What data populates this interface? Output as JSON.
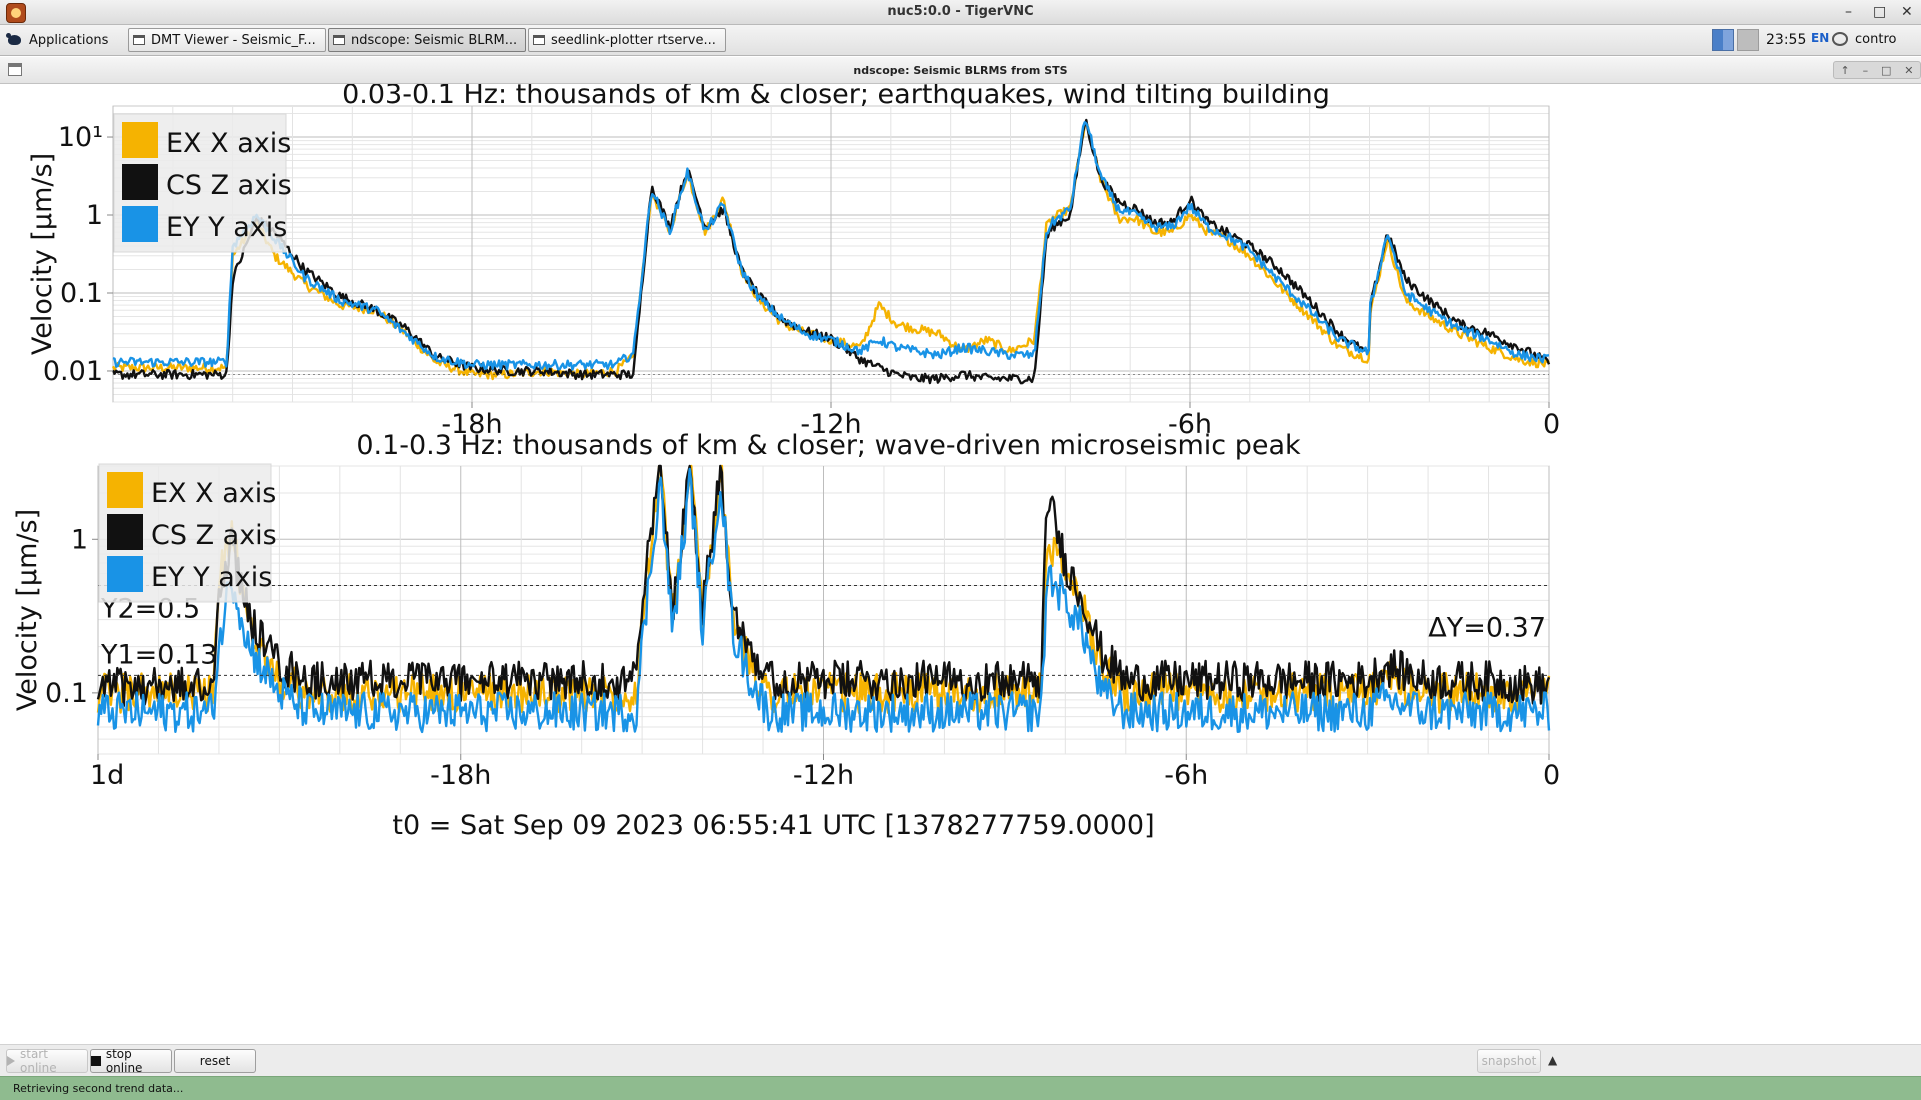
{
  "vnc": {
    "title": "nuc5:0.0 - TigerVNC"
  },
  "taskbar": {
    "applications_label": "Applications",
    "tasks": [
      {
        "label": "DMT Viewer - Seismic_F..."
      },
      {
        "label": "ndscope: Seismic BLRM..."
      },
      {
        "label": "seedlink-plotter rtserve..."
      }
    ],
    "clock": "23:55",
    "lang": "EN",
    "user": "contro"
  },
  "window": {
    "title": "ndscope: Seismic BLRMS from STS"
  },
  "chart_data": [
    {
      "type": "line",
      "title": "0.03-0.1 Hz: thousands of km & closer; earthquakes, wind tilting building",
      "ylabel": "Velocity [μm/s]",
      "y_scale": "log",
      "ylim": [
        0.004,
        25
      ],
      "ytick_labels": [
        "0.01",
        "0.1",
        "1",
        "10¹"
      ],
      "ytick_values": [
        0.01,
        0.1,
        1,
        10
      ],
      "xlim": [
        -24,
        0
      ],
      "xtick_labels": [
        "-18h",
        "-12h",
        "-6h",
        "0"
      ],
      "xtick_values": [
        -18,
        -12,
        -6,
        0
      ],
      "legend": "top-left",
      "colors": {
        "EX X axis": "#f5b301",
        "CS Z axis": "#111111",
        "EY Y axis": "#1993e6"
      },
      "series": [
        {
          "name": "EX X axis",
          "x": [
            -24,
            -22.1,
            -22.0,
            -21.6,
            -21.3,
            -20.8,
            -20.2,
            -19.6,
            -19.1,
            -18.6,
            -18,
            -17.4,
            -16.8,
            -16.2,
            -15.6,
            -15.3,
            -15.0,
            -14.7,
            -14.4,
            -14.1,
            -13.8,
            -13.5,
            -13.2,
            -12.8,
            -12.4,
            -12.0,
            -11.5,
            -11.2,
            -10.9,
            -10.6,
            -10.2,
            -9.8,
            -9.4,
            -9.0,
            -8.6,
            -8.4,
            -8.3,
            -8.0,
            -7.75,
            -7.5,
            -7.2,
            -6.9,
            -6.6,
            -6.3,
            -6.0,
            -5.7,
            -5.4,
            -5.0,
            -4.5,
            -4.0,
            -3.5,
            -3.0,
            -3.0,
            -2.7,
            -2.4,
            -2.0,
            -1.5,
            -1.0,
            -0.5,
            0
          ],
          "y": [
            0.011,
            0.011,
            0.3,
            0.8,
            0.3,
            0.13,
            0.07,
            0.06,
            0.03,
            0.013,
            0.009,
            0.009,
            0.01,
            0.009,
            0.01,
            0.015,
            2.0,
            0.6,
            3.5,
            0.6,
            1.6,
            0.2,
            0.08,
            0.04,
            0.03,
            0.025,
            0.02,
            0.07,
            0.04,
            0.035,
            0.03,
            0.018,
            0.025,
            0.018,
            0.025,
            0.7,
            0.9,
            1.2,
            16,
            3,
            0.9,
            0.9,
            0.6,
            0.6,
            1.0,
            0.6,
            0.5,
            0.3,
            0.12,
            0.05,
            0.02,
            0.014,
            0.05,
            0.5,
            0.08,
            0.05,
            0.03,
            0.02,
            0.014,
            0.012
          ]
        },
        {
          "name": "CS Z axis",
          "x": [
            -24,
            -22.1,
            -22.0,
            -21.6,
            -21.3,
            -20.8,
            -20.2,
            -19.6,
            -19.1,
            -18.6,
            -18,
            -17.4,
            -16.8,
            -16.2,
            -15.6,
            -15.3,
            -15.0,
            -14.7,
            -14.4,
            -14.1,
            -13.8,
            -13.5,
            -13.2,
            -12.8,
            -12.4,
            -12.0,
            -11.5,
            -11.2,
            -10.9,
            -10.6,
            -10.2,
            -9.8,
            -9.4,
            -9.0,
            -8.6,
            -8.4,
            -8.3,
            -8.0,
            -7.75,
            -7.5,
            -7.2,
            -6.9,
            -6.6,
            -6.3,
            -6.0,
            -5.7,
            -5.4,
            -5.0,
            -4.5,
            -4.0,
            -3.5,
            -3.0,
            -3.0,
            -2.7,
            -2.4,
            -2.0,
            -1.5,
            -1.0,
            -0.5,
            0
          ],
          "y": [
            0.009,
            0.009,
            0.15,
            0.9,
            0.6,
            0.2,
            0.09,
            0.06,
            0.035,
            0.015,
            0.011,
            0.01,
            0.01,
            0.009,
            0.009,
            0.009,
            2.4,
            0.7,
            3.8,
            0.7,
            1.2,
            0.2,
            0.09,
            0.045,
            0.032,
            0.026,
            0.014,
            0.011,
            0.009,
            0.008,
            0.008,
            0.009,
            0.008,
            0.008,
            0.008,
            0.5,
            0.7,
            1.0,
            17,
            3,
            1.5,
            1.2,
            0.8,
            0.8,
            1.6,
            0.8,
            0.6,
            0.4,
            0.2,
            0.08,
            0.03,
            0.016,
            0.06,
            0.6,
            0.15,
            0.08,
            0.04,
            0.03,
            0.02,
            0.013
          ]
        },
        {
          "name": "EY Y axis",
          "x": [
            -24,
            -22.1,
            -22.0,
            -21.6,
            -21.3,
            -20.8,
            -20.2,
            -19.6,
            -19.1,
            -18.6,
            -18,
            -17.4,
            -16.8,
            -16.2,
            -15.6,
            -15.3,
            -15.0,
            -14.7,
            -14.4,
            -14.1,
            -13.8,
            -13.5,
            -13.2,
            -12.8,
            -12.4,
            -12.0,
            -11.5,
            -11.2,
            -10.9,
            -10.6,
            -10.2,
            -9.8,
            -9.4,
            -9.0,
            -8.6,
            -8.4,
            -8.3,
            -8.0,
            -7.75,
            -7.5,
            -7.2,
            -6.9,
            -6.6,
            -6.3,
            -6.0,
            -5.7,
            -5.4,
            -5.0,
            -4.5,
            -4.0,
            -3.5,
            -3.0,
            -3.0,
            -2.7,
            -2.4,
            -2.0,
            -1.5,
            -1.0,
            -0.5,
            0
          ],
          "y": [
            0.013,
            0.013,
            0.4,
            1.0,
            0.5,
            0.16,
            0.08,
            0.06,
            0.03,
            0.015,
            0.012,
            0.012,
            0.012,
            0.012,
            0.012,
            0.017,
            2.2,
            0.6,
            3.6,
            0.6,
            1.4,
            0.2,
            0.085,
            0.045,
            0.03,
            0.025,
            0.018,
            0.025,
            0.02,
            0.018,
            0.016,
            0.02,
            0.018,
            0.016,
            0.016,
            0.6,
            0.8,
            1.2,
            18,
            3.2,
            1.2,
            1.0,
            0.7,
            0.7,
            1.3,
            0.7,
            0.55,
            0.35,
            0.14,
            0.06,
            0.025,
            0.017,
            0.06,
            0.6,
            0.1,
            0.06,
            0.035,
            0.025,
            0.016,
            0.014
          ]
        }
      ]
    },
    {
      "type": "line",
      "title": "0.1-0.3 Hz: thousands of km & closer; wave-driven microseismic peak",
      "ylabel": "Velocity [μm/s]",
      "y_scale": "log",
      "ylim": [
        0.04,
        3.0
      ],
      "ytick_labels": [
        "0.1",
        "1"
      ],
      "ytick_values": [
        0.1,
        1
      ],
      "xlim": [
        -24,
        0
      ],
      "xtick_labels": [
        "1d",
        "-18h",
        "-12h",
        "-6h",
        "0"
      ],
      "xtick_values": [
        -24,
        -18,
        -12,
        -6,
        0
      ],
      "x_axis_label": "t0 = Sat Sep 09 2023 06:55:41 UTC [1378277759.0000]",
      "legend": "top-left",
      "cursors": {
        "Y1": 0.13,
        "Y2": 0.5,
        "Y1_label": "Y1=0.13",
        "Y2_label": "Y2=0.5",
        "delta_label": "ΔY=0.37"
      },
      "series": [
        {
          "name": "EX X axis",
          "x": [
            -24,
            -22.1,
            -22.0,
            -21.8,
            -21.5,
            -21.0,
            -20.5,
            -20,
            -19,
            -18,
            -17,
            -16,
            -15.1,
            -15.0,
            -14.7,
            -14.5,
            -14.2,
            -14.0,
            -13.7,
            -13.5,
            -13.2,
            -12.9,
            -12.5,
            -12,
            -11,
            -10,
            -9,
            -8.4,
            -8.3,
            -8.0,
            -7.7,
            -7.4,
            -7.0,
            -6.5,
            -6,
            -5,
            -4,
            -3,
            -2.7,
            -2,
            -1,
            0
          ],
          "y": [
            0.1,
            0.1,
            0.5,
            1.2,
            0.25,
            0.12,
            0.1,
            0.1,
            0.1,
            0.1,
            0.1,
            0.1,
            0.1,
            0.3,
            3.0,
            0.3,
            3.0,
            0.3,
            3.0,
            0.3,
            0.15,
            0.1,
            0.1,
            0.1,
            0.1,
            0.1,
            0.1,
            0.1,
            1.0,
            0.6,
            0.35,
            0.15,
            0.1,
            0.1,
            0.1,
            0.1,
            0.1,
            0.1,
            0.12,
            0.1,
            0.1,
            0.1
          ]
        },
        {
          "name": "CS Z axis",
          "x": [
            -24,
            -22.1,
            -22.0,
            -21.8,
            -21.5,
            -21.0,
            -20.5,
            -20,
            -19,
            -18,
            -17,
            -16,
            -15.1,
            -15.0,
            -14.7,
            -14.5,
            -14.2,
            -14.0,
            -13.7,
            -13.5,
            -13.2,
            -12.9,
            -12.5,
            -12,
            -11,
            -10,
            -9,
            -8.4,
            -8.3,
            -8.0,
            -7.7,
            -7.4,
            -7.0,
            -6.5,
            -6,
            -5,
            -4,
            -3,
            -2.7,
            -2,
            -1,
            0
          ],
          "y": [
            0.11,
            0.11,
            0.4,
            1.0,
            0.3,
            0.15,
            0.12,
            0.12,
            0.12,
            0.12,
            0.12,
            0.12,
            0.12,
            0.4,
            3.0,
            0.35,
            3.0,
            0.35,
            3.0,
            0.35,
            0.2,
            0.12,
            0.12,
            0.12,
            0.12,
            0.12,
            0.12,
            0.12,
            2.0,
            0.7,
            0.4,
            0.18,
            0.12,
            0.12,
            0.12,
            0.12,
            0.12,
            0.12,
            0.15,
            0.12,
            0.12,
            0.11
          ]
        },
        {
          "name": "EY Y axis",
          "x": [
            -24,
            -22.1,
            -22.0,
            -21.8,
            -21.5,
            -21.0,
            -20.5,
            -20,
            -19,
            -18,
            -17,
            -16,
            -15.1,
            -15.0,
            -14.7,
            -14.5,
            -14.2,
            -14.0,
            -13.7,
            -13.5,
            -13.2,
            -12.9,
            -12.5,
            -12,
            -11,
            -10,
            -9,
            -8.4,
            -8.3,
            -8.0,
            -7.7,
            -7.4,
            -7.0,
            -6.5,
            -6,
            -5,
            -4,
            -3,
            -2.7,
            -2,
            -1,
            0
          ],
          "y": [
            0.075,
            0.075,
            0.2,
            0.6,
            0.2,
            0.1,
            0.075,
            0.075,
            0.075,
            0.075,
            0.075,
            0.075,
            0.075,
            0.2,
            2.5,
            0.25,
            2.5,
            0.25,
            2.5,
            0.25,
            0.12,
            0.075,
            0.075,
            0.075,
            0.075,
            0.075,
            0.075,
            0.075,
            0.6,
            0.4,
            0.25,
            0.1,
            0.075,
            0.075,
            0.075,
            0.075,
            0.075,
            0.075,
            0.09,
            0.075,
            0.075,
            0.075
          ]
        }
      ]
    }
  ],
  "buttons": {
    "start_online": "start online",
    "stop_online": "stop online",
    "reset": "reset",
    "snapshot": "snapshot"
  },
  "status": "Retrieving second trend data..."
}
